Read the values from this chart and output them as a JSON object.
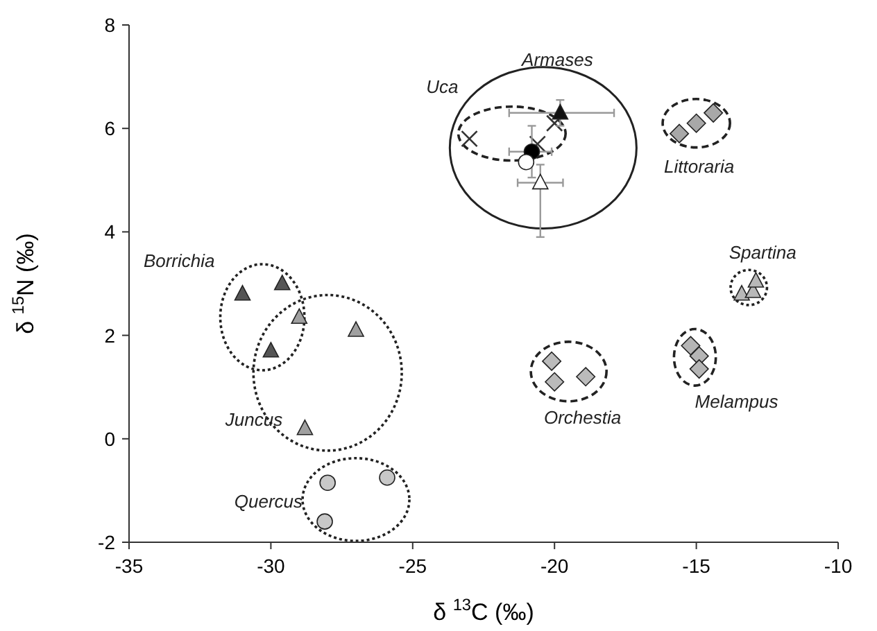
{
  "chart_data": {
    "type": "scatter",
    "xlabel": "δ $^{13}$C (‰)",
    "ylabel": "δ $^{15}$N (‰)",
    "xlim": [
      -35,
      -10
    ],
    "ylim": [
      -2,
      8
    ],
    "xticks": [
      -35,
      -30,
      -25,
      -20,
      -15,
      -10
    ],
    "yticks": [
      -2,
      0,
      2,
      4,
      6,
      8
    ],
    "grid": false,
    "series": [
      {
        "name": "Borrichia",
        "color": "#555555",
        "marker": "triangle",
        "x": [
          -31,
          -29.6,
          -30
        ],
        "values": [
          2.8,
          3.0,
          1.7
        ]
      },
      {
        "name": "Juncus",
        "color": "#a0a0a0",
        "marker": "triangle",
        "x": [
          -29,
          -27,
          -28.8
        ],
        "values": [
          2.35,
          2.1,
          0.2
        ]
      },
      {
        "name": "Quercus",
        "color": "#c8c8c8",
        "marker": "circle",
        "x": [
          -28,
          -25.9,
          -28.1
        ],
        "values": [
          -0.85,
          -0.75,
          -1.6
        ]
      },
      {
        "name": "Orchestia",
        "color": "#bbbbbb",
        "marker": "diamond",
        "x": [
          -20.1,
          -20,
          -18.9
        ],
        "values": [
          1.5,
          1.1,
          1.2
        ]
      },
      {
        "name": "Melampus",
        "color": "#b5b5b5",
        "marker": "diamond",
        "x": [
          -15.2,
          -14.9,
          -14.9
        ],
        "values": [
          1.8,
          1.6,
          1.35
        ]
      },
      {
        "name": "Spartina",
        "color": "#b8b8b8",
        "marker": "triangle",
        "x": [
          -13.4,
          -13.0,
          -12.9
        ],
        "values": [
          2.8,
          2.85,
          3.05
        ]
      },
      {
        "name": "Littoraria",
        "color": "#a8a8a8",
        "marker": "diamond",
        "x": [
          -15.6,
          -15,
          -14.4
        ],
        "values": [
          5.9,
          6.1,
          6.3
        ]
      },
      {
        "name": "Uca",
        "color": "#333333",
        "marker": "cross",
        "x": [
          -23,
          -20.6,
          -20
        ],
        "values": [
          5.8,
          5.7,
          6.1
        ]
      },
      {
        "name": "Armases",
        "color": "#111111",
        "marker": "triangle",
        "x": [
          -19.8
        ],
        "values": [
          6.3
        ],
        "xerrors": [
          [
            -21.6,
            -17.9
          ]
        ],
        "errors": [
          [
            6.05,
            6.55
          ]
        ]
      },
      {
        "color": "#000000",
        "marker": "circle",
        "x": [
          -20.8
        ],
        "values": [
          5.55
        ],
        "xerrors": [
          [
            -21.6,
            -20.1
          ]
        ],
        "errors": [
          [
            5.05,
            6.05
          ]
        ]
      },
      {
        "color": "#ffffff",
        "marker": "circle",
        "x": [
          -21.0
        ],
        "values": [
          5.35
        ]
      },
      {
        "color": "#ffffff",
        "marker": "triangle",
        "x": [
          -20.5
        ],
        "values": [
          4.95
        ],
        "xerrors": [
          [
            -21.3,
            -19.7
          ]
        ],
        "errors": [
          [
            3.9,
            5.3
          ]
        ]
      }
    ]
  }
}
